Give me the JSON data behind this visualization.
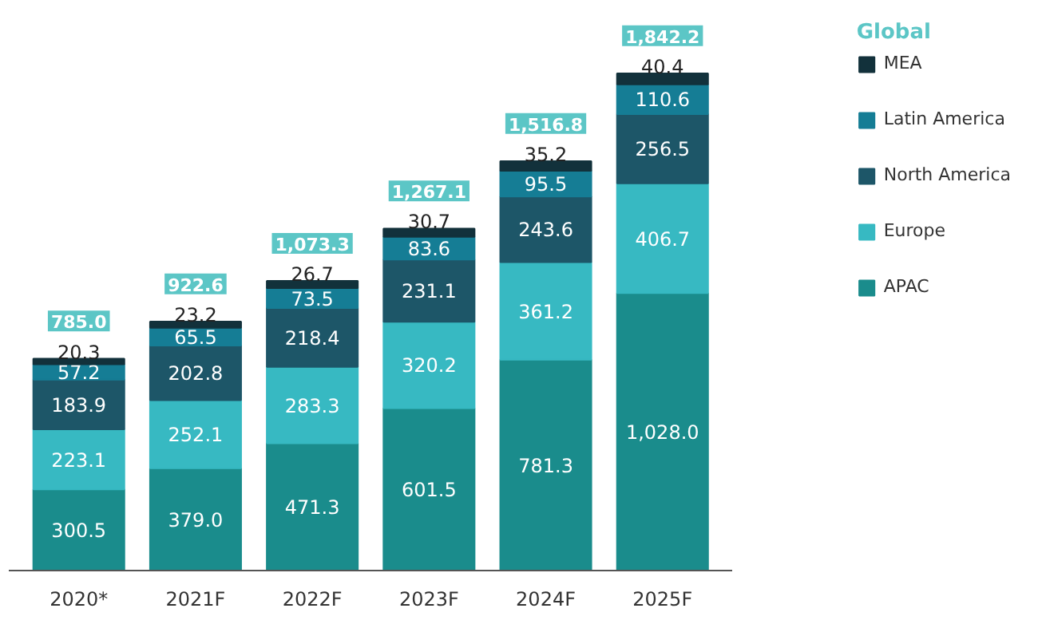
{
  "chart_data": {
    "type": "bar",
    "stacked": true,
    "legend": "right",
    "legend_title": "Global",
    "grid": false,
    "categories": [
      "2020*",
      "2021F",
      "2022F",
      "2023F",
      "2024F",
      "2025F"
    ],
    "series": [
      {
        "name": "APAC",
        "color": "#1a8c8c",
        "values": [
          300.5,
          379.0,
          471.3,
          601.5,
          781.3,
          1028.0
        ],
        "value_labels": [
          "300.5",
          "379.0",
          "471.3",
          "601.5",
          "781.3",
          "1,028.0"
        ]
      },
      {
        "name": "Europe",
        "color": "#37b9c2",
        "values": [
          223.1,
          252.1,
          283.3,
          320.2,
          361.2,
          406.7
        ],
        "value_labels": [
          "223.1",
          "252.1",
          "283.3",
          "320.2",
          "361.2",
          "406.7"
        ]
      },
      {
        "name": "North America",
        "color": "#1d5668",
        "values": [
          183.9,
          202.8,
          218.4,
          231.1,
          243.6,
          256.5
        ],
        "value_labels": [
          "183.9",
          "202.8",
          "218.4",
          "231.1",
          "243.6",
          "256.5"
        ]
      },
      {
        "name": "Latin America",
        "color": "#157d95",
        "values": [
          57.2,
          65.5,
          73.5,
          83.6,
          95.5,
          110.6
        ],
        "value_labels": [
          "57.2",
          "65.5",
          "73.5",
          "83.6",
          "95.5",
          "110.6"
        ]
      },
      {
        "name": "MEA",
        "color": "#12313b",
        "values": [
          20.3,
          23.2,
          26.7,
          30.7,
          35.2,
          40.4
        ],
        "value_labels": [
          "20.3",
          "23.2",
          "26.7",
          "30.7",
          "35.2",
          "40.4"
        ]
      }
    ],
    "totals": [
      "785.0",
      "922.6",
      "1,073.3",
      "1,267.1",
      "1,516.8",
      "1,842.2"
    ]
  }
}
